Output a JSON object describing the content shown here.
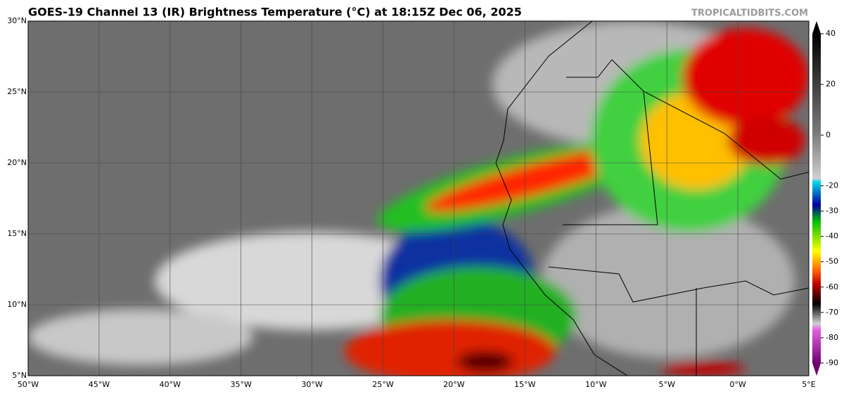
{
  "title": "GOES-19 Channel 13 (IR) Brightness Temperature (°C) at 18:15Z Dec 06, 2025",
  "watermark": "TROPICALTIDBITS.COM",
  "map": {
    "xlim": [
      -50,
      5
    ],
    "ylim": [
      5,
      30
    ],
    "xticks": [
      {
        "value": -50,
        "label": "50°W"
      },
      {
        "value": -45,
        "label": "45°W"
      },
      {
        "value": -40,
        "label": "40°W"
      },
      {
        "value": -35,
        "label": "35°W"
      },
      {
        "value": -30,
        "label": "30°W"
      },
      {
        "value": -25,
        "label": "25°W"
      },
      {
        "value": -20,
        "label": "20°W"
      },
      {
        "value": -15,
        "label": "15°W"
      },
      {
        "value": -10,
        "label": "10°W"
      },
      {
        "value": -5,
        "label": "5°W"
      },
      {
        "value": 0,
        "label": "0°W"
      },
      {
        "value": 5,
        "label": "5°E"
      }
    ],
    "yticks": [
      {
        "value": 30,
        "label": "30°N"
      },
      {
        "value": 25,
        "label": "25°N"
      },
      {
        "value": 20,
        "label": "20°N"
      },
      {
        "value": 15,
        "label": "15°N"
      },
      {
        "value": 10,
        "label": "10°N"
      },
      {
        "value": 5,
        "label": "5°N"
      }
    ]
  },
  "colorbar": {
    "lim": [
      -95,
      45
    ],
    "ticks": [
      40,
      20,
      0,
      -20,
      -30,
      -40,
      -50,
      -60,
      -70,
      -80,
      -90
    ]
  }
}
